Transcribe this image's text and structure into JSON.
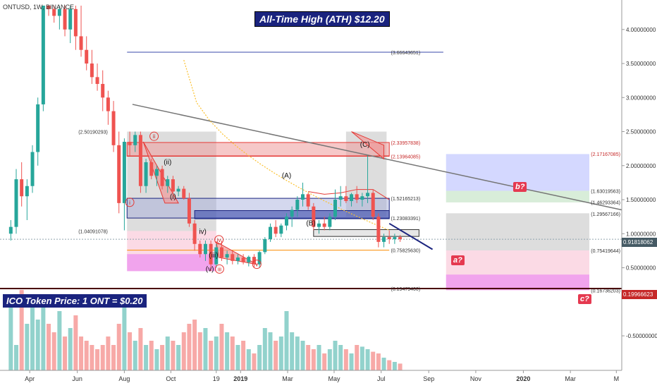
{
  "header": {
    "symbol_line": "ONTUSD, 1W, BINANCE"
  },
  "banners": {
    "ath": "All-Time High (ATH) $12.20",
    "ico": "ICO Token Price: 1 ONT = $0.20"
  },
  "tags": {
    "a": "a?",
    "b": "b?",
    "c": "c?"
  },
  "current_price": {
    "value": "0.91818062",
    "ico_value": "0.19966623"
  },
  "colors": {
    "bull": "#26a69a",
    "bear": "#ef5350",
    "navy": "#1a237e",
    "red_tag": "#e53950"
  },
  "chart_data": {
    "type": "candlestick",
    "ylim": [
      -0.8,
      4.35
    ],
    "y_ticks": [
      {
        "v": 4.0,
        "label": "4.00000000"
      },
      {
        "v": 3.5,
        "label": "3.50000000"
      },
      {
        "v": 3.0,
        "label": "3.00000000"
      },
      {
        "v": 2.5,
        "label": "2.50000000"
      },
      {
        "v": 2.0,
        "label": "2.00000000"
      },
      {
        "v": 1.5,
        "label": "1.50000000"
      },
      {
        "v": 1.0,
        "label": "1.00000000"
      },
      {
        "v": 0.5,
        "label": "0.50000000"
      },
      {
        "v": -0.5,
        "label": "-0.50000000"
      }
    ],
    "x_ticks": [
      {
        "i": 3.5,
        "label": "Apr"
      },
      {
        "i": 12.3,
        "label": "Jun"
      },
      {
        "i": 21.0,
        "label": "Aug"
      },
      {
        "i": 29.6,
        "label": "Oct"
      },
      {
        "i": 38.0,
        "label": "19"
      },
      {
        "i": 42.5,
        "label": "2019"
      },
      {
        "i": 51.2,
        "label": "Mar"
      },
      {
        "i": 59.8,
        "label": "May"
      },
      {
        "i": 68.5,
        "label": "Jul"
      },
      {
        "i": 77.3,
        "label": "Sep"
      },
      {
        "i": 86.0,
        "label": "Nov"
      },
      {
        "i": 94.8,
        "label": "2020"
      },
      {
        "i": 103.5,
        "label": "Mar"
      },
      {
        "i": 112.0,
        "label": "M"
      }
    ],
    "x_range": [
      -2,
      113
    ],
    "candles": [
      [
        1.0,
        1.2,
        0.9,
        1.1
      ],
      [
        1.1,
        1.95,
        1.0,
        1.8
      ],
      [
        1.8,
        2.05,
        1.4,
        1.55
      ],
      [
        1.55,
        1.8,
        1.2,
        1.7
      ],
      [
        1.7,
        2.3,
        1.6,
        2.2
      ],
      [
        2.2,
        3.0,
        2.0,
        2.9
      ],
      [
        2.9,
        4.4,
        2.8,
        4.4
      ],
      [
        4.4,
        4.4,
        4.2,
        4.3
      ],
      [
        4.3,
        4.4,
        4.1,
        4.2
      ],
      [
        4.2,
        4.4,
        4.0,
        4.3
      ],
      [
        4.3,
        4.4,
        3.9,
        4.0
      ],
      [
        4.0,
        4.4,
        3.8,
        4.3
      ],
      [
        4.3,
        4.4,
        3.7,
        3.9
      ],
      [
        3.9,
        4.4,
        3.6,
        3.7
      ],
      [
        3.7,
        3.9,
        3.4,
        3.5
      ],
      [
        3.5,
        3.7,
        3.2,
        3.3
      ],
      [
        3.3,
        3.5,
        3.1,
        3.2
      ],
      [
        3.2,
        3.4,
        2.8,
        3.0
      ],
      [
        3.0,
        3.1,
        2.6,
        2.8
      ],
      [
        2.8,
        2.95,
        2.2,
        2.3
      ],
      [
        2.3,
        2.5,
        1.3,
        1.45
      ],
      [
        1.45,
        2.4,
        1.05,
        2.35
      ],
      [
        2.35,
        2.5,
        2.15,
        2.3
      ],
      [
        2.3,
        2.5,
        2.2,
        2.45
      ],
      [
        2.45,
        2.5,
        1.6,
        1.7
      ],
      [
        1.7,
        2.1,
        1.6,
        2.05
      ],
      [
        2.05,
        2.1,
        1.8,
        1.85
      ],
      [
        1.85,
        2.0,
        1.7,
        1.95
      ],
      [
        1.95,
        2.0,
        1.65,
        1.7
      ],
      [
        1.7,
        1.85,
        1.6,
        1.8
      ],
      [
        1.8,
        1.85,
        1.6,
        1.62
      ],
      [
        1.62,
        1.7,
        1.55,
        1.66
      ],
      [
        1.66,
        1.7,
        1.5,
        1.52
      ],
      [
        1.52,
        1.6,
        1.1,
        1.15
      ],
      [
        1.15,
        1.2,
        0.75,
        0.85
      ],
      [
        0.85,
        0.9,
        0.65,
        0.7
      ],
      [
        0.7,
        0.9,
        0.6,
        0.85
      ],
      [
        0.85,
        0.9,
        0.45,
        0.55
      ],
      [
        0.55,
        0.85,
        0.5,
        0.8
      ],
      [
        0.8,
        0.9,
        0.6,
        0.65
      ],
      [
        0.65,
        0.75,
        0.55,
        0.7
      ],
      [
        0.7,
        0.75,
        0.55,
        0.6
      ],
      [
        0.6,
        0.7,
        0.55,
        0.65
      ],
      [
        0.65,
        0.7,
        0.55,
        0.58
      ],
      [
        0.58,
        0.68,
        0.52,
        0.66
      ],
      [
        0.66,
        0.7,
        0.5,
        0.55
      ],
      [
        0.55,
        0.75,
        0.5,
        0.73
      ],
      [
        0.73,
        0.95,
        0.7,
        0.92
      ],
      [
        0.92,
        1.15,
        0.88,
        1.1
      ],
      [
        1.1,
        1.2,
        0.95,
        1.0
      ],
      [
        1.0,
        1.15,
        0.95,
        1.12
      ],
      [
        1.12,
        1.3,
        1.05,
        1.25
      ],
      [
        1.25,
        1.4,
        1.1,
        1.35
      ],
      [
        1.35,
        1.55,
        1.25,
        1.5
      ],
      [
        1.5,
        1.75,
        1.4,
        1.58
      ],
      [
        1.58,
        1.6,
        1.35,
        1.4
      ],
      [
        1.4,
        1.45,
        1.05,
        1.1
      ],
      [
        1.1,
        1.2,
        1.0,
        1.15
      ],
      [
        1.15,
        1.25,
        1.05,
        1.1
      ],
      [
        1.1,
        1.3,
        1.05,
        1.25
      ],
      [
        1.25,
        1.65,
        1.2,
        1.5
      ],
      [
        1.5,
        1.7,
        1.4,
        1.55
      ],
      [
        1.55,
        1.7,
        1.45,
        1.48
      ],
      [
        1.48,
        1.6,
        1.4,
        1.58
      ],
      [
        1.58,
        1.7,
        1.45,
        1.5
      ],
      [
        1.5,
        1.6,
        1.4,
        1.55
      ],
      [
        1.55,
        2.15,
        1.45,
        1.6
      ],
      [
        1.6,
        1.65,
        1.2,
        1.25
      ],
      [
        1.25,
        1.3,
        0.8,
        0.88
      ],
      [
        0.88,
        1.0,
        0.8,
        0.95
      ],
      [
        0.95,
        1.05,
        0.85,
        0.92
      ],
      [
        0.92,
        1.0,
        0.85,
        0.95
      ],
      [
        0.95,
        0.98,
        0.88,
        0.92
      ]
    ],
    "volumes": [
      0.9,
      0.3,
      0.95,
      0.55,
      0.8,
      0.6,
      0.75,
      0.55,
      0.45,
      0.7,
      0.4,
      0.5,
      0.65,
      0.4,
      0.35,
      0.3,
      0.25,
      0.3,
      0.4,
      0.3,
      0.55,
      0.75,
      0.45,
      0.35,
      0.5,
      0.3,
      0.35,
      0.25,
      0.3,
      0.4,
      0.35,
      0.3,
      0.45,
      0.55,
      0.6,
      0.45,
      0.5,
      0.35,
      0.4,
      0.55,
      0.45,
      0.4,
      0.3,
      0.35,
      0.25,
      0.2,
      0.3,
      0.5,
      0.45,
      0.35,
      0.4,
      0.7,
      0.45,
      0.4,
      0.35,
      0.3,
      0.25,
      0.3,
      0.2,
      0.25,
      0.35,
      0.3,
      0.25,
      0.2,
      0.3,
      0.28,
      0.25,
      0.22,
      0.2,
      0.15,
      0.12,
      0.1,
      0.08
    ],
    "level_labels": [
      {
        "v": 3.66643651,
        "label": "(3.66643651)"
      },
      {
        "v": 2.33957838,
        "label": "(2.33957838)"
      },
      {
        "v": 2.13964085,
        "label": "(2.13964085)"
      },
      {
        "v": 2.17167085,
        "label": "(2.17167085)"
      },
      {
        "v": 1.63019563,
        "label": "(1.63019563)"
      },
      {
        "v": 1.52165213,
        "label": "(1.52165213)"
      },
      {
        "v": 1.46293364,
        "label": "(1.46293364)"
      },
      {
        "v": 1.29567166,
        "label": "(1.29567166)"
      },
      {
        "v": 1.23083391,
        "label": "(1.23083391)"
      },
      {
        "v": 2.50190293,
        "label": "(2.50190293)"
      },
      {
        "v": 1.04091078,
        "label": "(1.04091078)"
      },
      {
        "v": 0.75419644,
        "label": "(0.75419644)"
      },
      {
        "v": 0.7582563,
        "label": "(0.75825630)"
      },
      {
        "v": 0.194794,
        "label": "(0.19479400)"
      },
      {
        "v": 0.16736203,
        "label": "(0.16736203)"
      }
    ],
    "wave_labels": [
      {
        "i": 26.5,
        "v": 2.4,
        "label": "ii",
        "circle": true
      },
      {
        "i": 22.0,
        "v": 1.43,
        "label": "i",
        "circle": true
      },
      {
        "i": 29.0,
        "v": 2.02,
        "label": "(ii)",
        "circle": false
      },
      {
        "i": 30.0,
        "v": 1.51,
        "label": "(i)",
        "circle": false
      },
      {
        "i": 35.5,
        "v": 1.0,
        "label": "iv)",
        "circle": false
      },
      {
        "i": 37.5,
        "v": 0.65,
        "label": "(iii)",
        "circle": false
      },
      {
        "i": 38.5,
        "v": 0.88,
        "label": "iv",
        "circle": true
      },
      {
        "i": 36.8,
        "v": 0.45,
        "label": "(v)",
        "circle": false
      },
      {
        "i": 38.6,
        "v": 0.45,
        "label": "iii",
        "circle": true
      },
      {
        "i": 45.5,
        "v": 0.52,
        "label": "v",
        "circle": true
      },
      {
        "i": 51.0,
        "v": 1.82,
        "label": "(A)",
        "circle": false
      },
      {
        "i": 55.5,
        "v": 1.12,
        "label": "(B)",
        "circle": false
      },
      {
        "i": 65.5,
        "v": 2.28,
        "label": "(C)",
        "circle": false
      }
    ]
  }
}
